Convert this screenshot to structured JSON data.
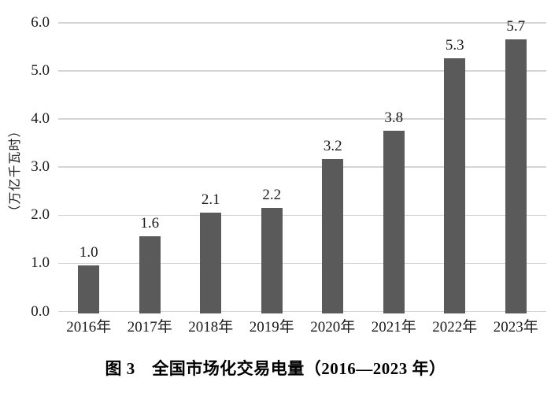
{
  "chart_data": {
    "type": "bar",
    "title": "图 3　全国市场化交易电量（2016—2023 年）",
    "ylabel": "（万亿千瓦时）",
    "xlabel": "",
    "categories": [
      "2016年",
      "2017年",
      "2018年",
      "2019年",
      "2020年",
      "2021年",
      "2022年",
      "2023年"
    ],
    "values": [
      1.0,
      1.6,
      2.1,
      2.2,
      3.2,
      3.8,
      5.3,
      5.7
    ],
    "value_labels": [
      "1.0",
      "1.6",
      "2.1",
      "2.2",
      "3.2",
      "3.8",
      "5.3",
      "5.7"
    ],
    "yticks": [
      0,
      1,
      2,
      3,
      4,
      5,
      6
    ],
    "ytick_labels": [
      "0.0",
      "1.0",
      "2.0",
      "3.0",
      "4.0",
      "5.0",
      "6.0"
    ],
    "ylim": [
      0,
      6
    ],
    "grid": true,
    "legend": false,
    "bar_color": "#5a5a5a",
    "grid_color": "#d4d4d4",
    "text_color": "#1a1a1a",
    "background": "#ffffff"
  }
}
